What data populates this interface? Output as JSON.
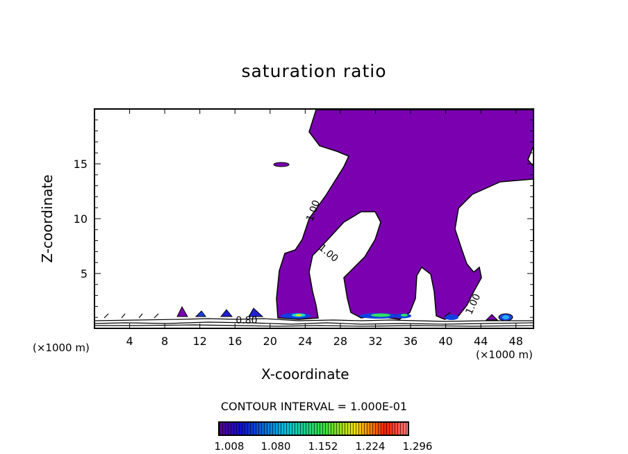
{
  "chart_data": {
    "type": "contour",
    "title": "saturation ratio",
    "xlabel": "X-coordinate",
    "ylabel": "Z-coordinate",
    "x_unit_label_left": "(×1000 m)",
    "x_unit_label_right": "(×1000 m)",
    "xlim": [
      0,
      50
    ],
    "ylim": [
      0,
      20
    ],
    "x_ticks": [
      "4",
      "8",
      "12",
      "16",
      "20",
      "24",
      "28",
      "32",
      "36",
      "40",
      "44",
      "48"
    ],
    "y_ticks": [
      "5",
      "10",
      "15"
    ],
    "contour_labels": [
      "1.00",
      "1.00",
      "1.00",
      "0.80"
    ],
    "contour_interval_text": "CONTOUR INTERVAL = 1.000E-01",
    "colorbar": {
      "labels": [
        "1.008",
        "1.080",
        "1.152",
        "1.224",
        "1.296"
      ],
      "range": [
        1.0,
        1.33
      ],
      "colors": [
        "#5a0090",
        "#1010d0",
        "#00c0e0",
        "#30e040",
        "#f0e000",
        "#ff2000",
        "#ff8080"
      ]
    },
    "fill_color": "#7a00b0"
  }
}
